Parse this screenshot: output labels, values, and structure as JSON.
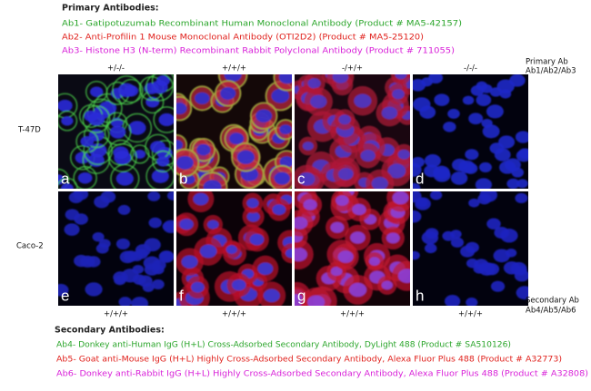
{
  "primary_antibodies": {
    "title": "Primary Antibodies:",
    "items": [
      "Ab1- Gatipotuzumab Recombinant Human Monoclonal Antibody (Product # MA5-42157)",
      "Ab2- Anti-Profilin 1 Mouse Monoclonal Antibody (OTI2D2) (Product # MA5-25120)",
      "Ab3- Histone H3 (N-term) Recombinant Rabbit Polyclonal Antibody (Product # 711055)"
    ]
  },
  "columns_top": [
    "+/-/-",
    "+/+/+",
    "-/+/+",
    "-/-/-"
  ],
  "primary_ab": {
    "label": "Primary Ab",
    "sub": "Ab1/Ab2/Ab3"
  },
  "rows": [
    "T-47D",
    "Caco-2"
  ],
  "panels": [
    "a",
    "b",
    "c",
    "d",
    "e",
    "f",
    "g",
    "h"
  ],
  "columns_bottom": [
    "+/+/+",
    "+/+/+",
    "+/+/+",
    "+/+/+"
  ],
  "secondary_ab": {
    "label": "Secondary Ab",
    "sub": "Ab4/Ab5/Ab6"
  },
  "secondary_antibodies": {
    "title": "Secondary Antibodies:",
    "items": [
      "Ab4- Donkey anti-Human IgG (H+L) Cross-Adsorbed Secondary Antibody, DyLight 488 (Product # SA510126)",
      "Ab5- Goat anti-Mouse IgG (H+L) Highly Cross-Adsorbed Secondary Antibody, Alexa Fluor Plus 488 (Product # A32773)",
      "Ab6- Donkey anti-Rabbit IgG (H+L) Highly Cross-Adsorbed Secondary Antibody, Alexa Fluor Plus 488 (Product # A32808)"
    ]
  }
}
